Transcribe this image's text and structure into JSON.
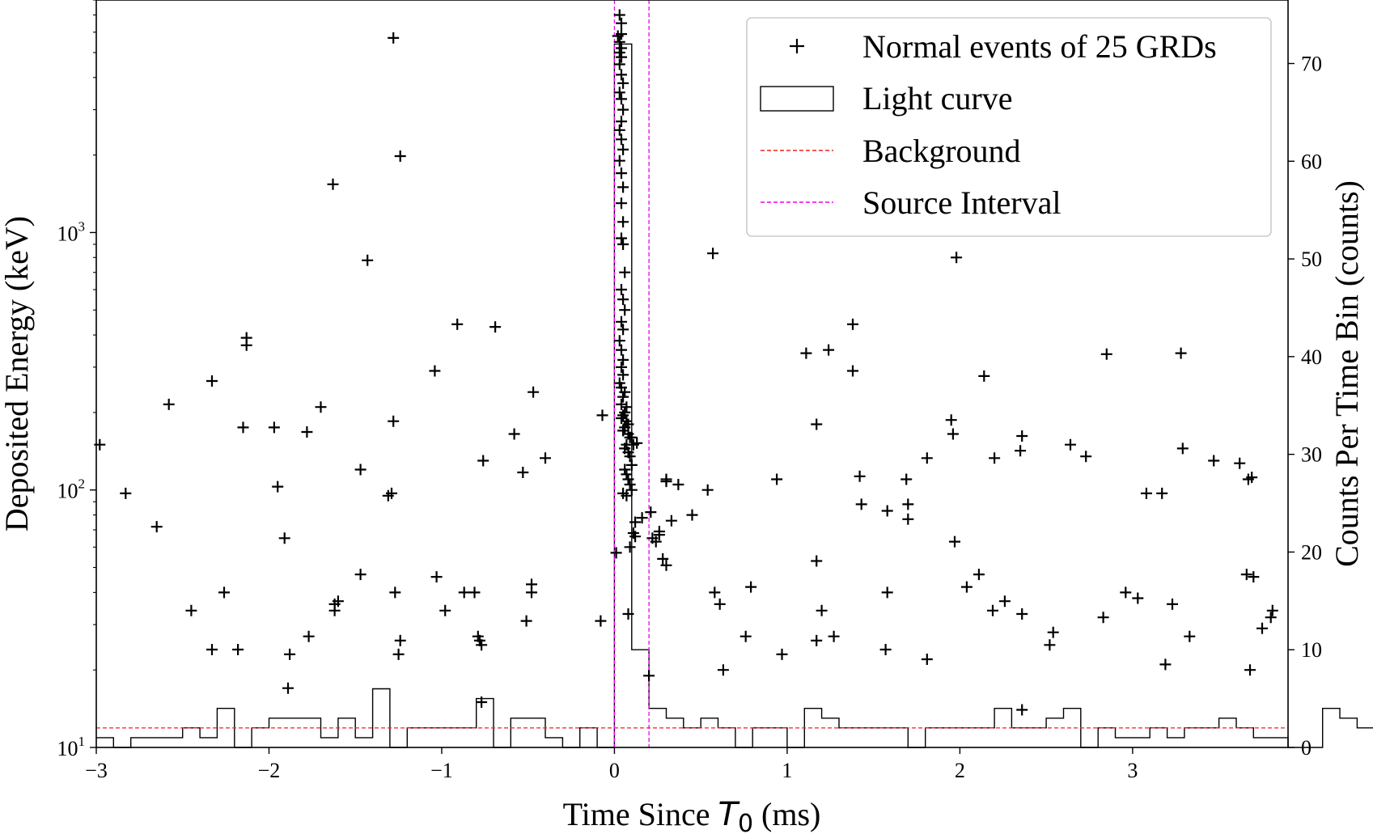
{
  "chart_data": {
    "type": "scatter",
    "xlabel": "Time Since T0 (ms)",
    "xlabel_parts": {
      "pre": "Time Since ",
      "sym": "T",
      "sub": "0",
      "post": " (ms)"
    },
    "ylabel_left": "Deposited Energy (keV)",
    "ylabel_right": "Counts Per Time Bin (counts)",
    "xlim": [
      -3.0,
      3.9
    ],
    "ylim_left": [
      10,
      8000
    ],
    "yscale_left": "log",
    "ylim_right": [
      0,
      76.5
    ],
    "x_ticks": [
      -3,
      -2,
      -1,
      0,
      1,
      2,
      3
    ],
    "x_tick_labels": [
      "−3",
      "−2",
      "−1",
      "0",
      "1",
      "2",
      "3"
    ],
    "y_left_ticks": [
      {
        "value": 10,
        "base": "10",
        "exp": "1"
      },
      {
        "value": 100,
        "base": "10",
        "exp": "2"
      },
      {
        "value": 1000,
        "base": "10",
        "exp": "3"
      }
    ],
    "y_right_ticks": [
      0,
      10,
      20,
      30,
      40,
      50,
      60,
      70
    ],
    "legend": {
      "position": "top-right",
      "entries": [
        {
          "label": "Normal events of 25 GRDs",
          "style": "marker"
        },
        {
          "label": "Light curve",
          "style": "box"
        },
        {
          "label": "Background",
          "style": "red-dash"
        },
        {
          "label": "Source Interval",
          "style": "magenta-dash"
        }
      ]
    },
    "colors": {
      "scatter": "#000000",
      "light_curve": "#000000",
      "background": "#ee2222",
      "source": "#ee00ee"
    },
    "background_level": 2,
    "source_interval": [
      0.0,
      0.2
    ],
    "light_curve": {
      "bin_width": 0.1,
      "start": -3.0,
      "counts": [
        1,
        0,
        1,
        1,
        1,
        2,
        1,
        4,
        0,
        2,
        3,
        3,
        3,
        1,
        3,
        1,
        6,
        0,
        2,
        2,
        2,
        2,
        5,
        0,
        3,
        3,
        1,
        0,
        2,
        0,
        72,
        10,
        4,
        3,
        2,
        3,
        2,
        0,
        2,
        2,
        0,
        4,
        3,
        2,
        2,
        2,
        2,
        0,
        2,
        2,
        2,
        2,
        4,
        2,
        2,
        3,
        4,
        0,
        2,
        1,
        1,
        2,
        1,
        2,
        2,
        3,
        2,
        1,
        1,
        0,
        0,
        4,
        3,
        2
      ]
    },
    "events": [
      [
        -2.98,
        150
      ],
      [
        -2.83,
        97
      ],
      [
        -2.65,
        72
      ],
      [
        -2.58,
        215
      ],
      [
        -2.45,
        34
      ],
      [
        -2.33,
        24
      ],
      [
        -2.33,
        265
      ],
      [
        -2.26,
        40
      ],
      [
        -2.18,
        24
      ],
      [
        -2.13,
        365
      ],
      [
        -2.13,
        390
      ],
      [
        -2.15,
        175
      ],
      [
        -1.97,
        175
      ],
      [
        -1.95,
        103
      ],
      [
        -1.91,
        65
      ],
      [
        -1.89,
        17
      ],
      [
        -1.88,
        23
      ],
      [
        -1.78,
        168
      ],
      [
        -1.77,
        27
      ],
      [
        -1.63,
        1540
      ],
      [
        -1.62,
        36
      ],
      [
        -1.62,
        34
      ],
      [
        -1.6,
        37
      ],
      [
        -1.7,
        210
      ],
      [
        -1.47,
        120
      ],
      [
        -1.47,
        47
      ],
      [
        -1.43,
        780
      ],
      [
        -1.31,
        95
      ],
      [
        -1.29,
        97
      ],
      [
        -1.28,
        5700
      ],
      [
        -1.28,
        185
      ],
      [
        -1.27,
        40
      ],
      [
        -1.25,
        23
      ],
      [
        -1.24,
        26
      ],
      [
        -1.24,
        1980
      ],
      [
        -1.04,
        290
      ],
      [
        -1.03,
        46
      ],
      [
        -0.98,
        34
      ],
      [
        -0.91,
        440
      ],
      [
        -0.87,
        40
      ],
      [
        -0.81,
        40
      ],
      [
        -0.79,
        27
      ],
      [
        -0.78,
        26
      ],
      [
        -0.77,
        25
      ],
      [
        -0.76,
        130
      ],
      [
        -0.77,
        15
      ],
      [
        -0.69,
        430
      ],
      [
        -0.58,
        165
      ],
      [
        -0.53,
        117
      ],
      [
        -0.51,
        31
      ],
      [
        -0.48,
        43
      ],
      [
        -0.48,
        40
      ],
      [
        -0.47,
        240
      ],
      [
        -0.4,
        133
      ],
      [
        -0.08,
        31
      ],
      [
        -0.07,
        195
      ],
      [
        0.01,
        57
      ],
      [
        0.22,
        65
      ],
      [
        0.26,
        69
      ],
      [
        0.28,
        54
      ],
      [
        0.21,
        82
      ],
      [
        0.2,
        19
      ],
      [
        0.24,
        63
      ],
      [
        0.26,
        67
      ],
      [
        0.3,
        110
      ],
      [
        0.3,
        51
      ],
      [
        0.33,
        76
      ],
      [
        0.3,
        108
      ],
      [
        0.37,
        105
      ],
      [
        0.45,
        80
      ],
      [
        0.54,
        100
      ],
      [
        0.57,
        830
      ],
      [
        0.58,
        40
      ],
      [
        0.61,
        36
      ],
      [
        0.63,
        20
      ],
      [
        0.76,
        27
      ],
      [
        0.79,
        42
      ],
      [
        0.94,
        110
      ],
      [
        0.97,
        23
      ],
      [
        1.11,
        340
      ],
      [
        1.17,
        26
      ],
      [
        1.17,
        53
      ],
      [
        1.17,
        180
      ],
      [
        1.2,
        34
      ],
      [
        1.24,
        350
      ],
      [
        1.27,
        27
      ],
      [
        1.38,
        290
      ],
      [
        1.38,
        440
      ],
      [
        1.42,
        113
      ],
      [
        1.43,
        88
      ],
      [
        1.57,
        24
      ],
      [
        1.58,
        40
      ],
      [
        1.58,
        83
      ],
      [
        1.69,
        110
      ],
      [
        1.7,
        88
      ],
      [
        1.7,
        77
      ],
      [
        1.81,
        22
      ],
      [
        1.81,
        133
      ],
      [
        1.95,
        187
      ],
      [
        1.96,
        165
      ],
      [
        1.97,
        63
      ],
      [
        1.98,
        800
      ],
      [
        2.04,
        42
      ],
      [
        2.11,
        47
      ],
      [
        2.14,
        277
      ],
      [
        2.19,
        34
      ],
      [
        2.2,
        133
      ],
      [
        2.26,
        37
      ],
      [
        2.35,
        142
      ],
      [
        2.36,
        33
      ],
      [
        2.36,
        162
      ],
      [
        2.36,
        14
      ],
      [
        2.52,
        25
      ],
      [
        2.54,
        28
      ],
      [
        2.64,
        150
      ],
      [
        2.73,
        135
      ],
      [
        2.83,
        32
      ],
      [
        2.85,
        337
      ],
      [
        2.96,
        40
      ],
      [
        3.03,
        38
      ],
      [
        3.08,
        97
      ],
      [
        3.17,
        97
      ],
      [
        3.19,
        21
      ],
      [
        3.23,
        36
      ],
      [
        3.28,
        340
      ],
      [
        3.29,
        145
      ],
      [
        3.33,
        27
      ],
      [
        3.47,
        130
      ],
      [
        3.62,
        127
      ],
      [
        3.66,
        47
      ],
      [
        3.67,
        110
      ],
      [
        3.69,
        112
      ],
      [
        3.68,
        20
      ],
      [
        3.7,
        46
      ],
      [
        3.75,
        29
      ],
      [
        3.8,
        32
      ],
      [
        3.81,
        34
      ],
      [
        0.03,
        7000
      ],
      [
        0.04,
        6500
      ],
      [
        0.04,
        5900
      ],
      [
        0.02,
        5800
      ],
      [
        0.03,
        5500
      ],
      [
        0.04,
        5200
      ],
      [
        0.03,
        5000
      ],
      [
        0.04,
        4800
      ],
      [
        0.03,
        4500
      ],
      [
        0.04,
        4100
      ],
      [
        0.05,
        3800
      ],
      [
        0.03,
        3500
      ],
      [
        0.04,
        3300
      ],
      [
        0.05,
        3000
      ],
      [
        0.04,
        2700
      ],
      [
        0.03,
        2500
      ],
      [
        0.04,
        2300
      ],
      [
        0.05,
        2100
      ],
      [
        0.03,
        1900
      ],
      [
        0.04,
        1700
      ],
      [
        0.05,
        1500
      ],
      [
        0.04,
        1300
      ],
      [
        0.05,
        1100
      ],
      [
        0.04,
        950
      ],
      [
        0.05,
        900
      ],
      [
        0.06,
        700
      ],
      [
        0.04,
        600
      ],
      [
        0.05,
        550
      ],
      [
        0.06,
        500
      ],
      [
        0.04,
        450
      ],
      [
        0.05,
        420
      ],
      [
        0.03,
        380
      ],
      [
        0.04,
        350
      ],
      [
        0.05,
        320
      ],
      [
        0.04,
        300
      ],
      [
        0.05,
        280
      ],
      [
        0.03,
        260
      ],
      [
        0.04,
        250
      ],
      [
        0.06,
        240
      ],
      [
        0.05,
        230
      ],
      [
        0.04,
        215
      ],
      [
        0.07,
        210
      ],
      [
        0.06,
        200
      ],
      [
        0.05,
        195
      ],
      [
        0.04,
        190
      ],
      [
        0.07,
        185
      ],
      [
        0.08,
        180
      ],
      [
        0.06,
        175
      ],
      [
        0.05,
        170
      ],
      [
        0.08,
        165
      ],
      [
        0.09,
        160
      ],
      [
        0.1,
        160
      ],
      [
        0.07,
        150
      ],
      [
        0.11,
        150
      ],
      [
        0.06,
        145
      ],
      [
        0.08,
        140
      ],
      [
        0.09,
        135
      ],
      [
        0.1,
        125
      ],
      [
        0.06,
        120
      ],
      [
        0.07,
        115
      ],
      [
        0.08,
        110
      ],
      [
        0.09,
        105
      ],
      [
        0.1,
        100
      ],
      [
        0.05,
        97
      ],
      [
        0.07,
        95
      ],
      [
        0.12,
        75
      ],
      [
        0.11,
        68
      ],
      [
        0.09,
        60
      ],
      [
        0.13,
        152
      ],
      [
        0.12,
        66
      ],
      [
        0.16,
        78
      ],
      [
        0.08,
        33
      ]
    ]
  }
}
